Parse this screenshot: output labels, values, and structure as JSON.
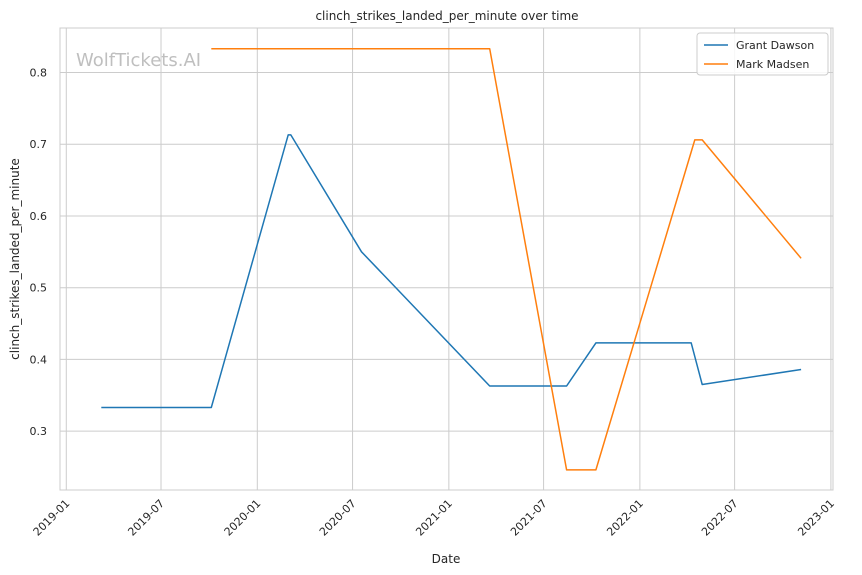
{
  "chart_data": {
    "type": "line",
    "title": "clinch_strikes_landed_per_minute over time",
    "xlabel": "Date",
    "ylabel": "clinch_strikes_landed_per_minute",
    "watermark": "WolfTickets.AI",
    "x_ticks": [
      "2019-01",
      "2019-07",
      "2020-01",
      "2020-07",
      "2021-01",
      "2021-07",
      "2022-01",
      "2022-07",
      "2023-01"
    ],
    "y_ticks": [
      0.3,
      0.4,
      0.5,
      0.6,
      0.7,
      0.8
    ],
    "xlim": [
      "2018-12-20",
      "2023-01-05"
    ],
    "ylim": [
      0.218,
      0.862
    ],
    "grid": true,
    "legend_position": "top-right",
    "series": [
      {
        "name": "Grant Dawson",
        "color": "#1f77b4",
        "points": [
          [
            "2019-03-09",
            0.333
          ],
          [
            "2019-10-05",
            0.333
          ],
          [
            "2020-02-29",
            0.713
          ],
          [
            "2020-03-05",
            0.713
          ],
          [
            "2020-07-18",
            0.55
          ],
          [
            "2021-03-20",
            0.363
          ],
          [
            "2021-08-14",
            0.363
          ],
          [
            "2021-10-09",
            0.423
          ],
          [
            "2022-04-09",
            0.423
          ],
          [
            "2022-04-30",
            0.365
          ],
          [
            "2022-11-05",
            0.386
          ]
        ]
      },
      {
        "name": "Mark Madsen",
        "color": "#ff7f0e",
        "points": [
          [
            "2019-10-05",
            0.833
          ],
          [
            "2021-03-20",
            0.833
          ],
          [
            "2021-08-14",
            0.246
          ],
          [
            "2021-10-09",
            0.246
          ],
          [
            "2022-04-16",
            0.706
          ],
          [
            "2022-04-30",
            0.706
          ],
          [
            "2022-11-05",
            0.541
          ]
        ]
      }
    ]
  }
}
